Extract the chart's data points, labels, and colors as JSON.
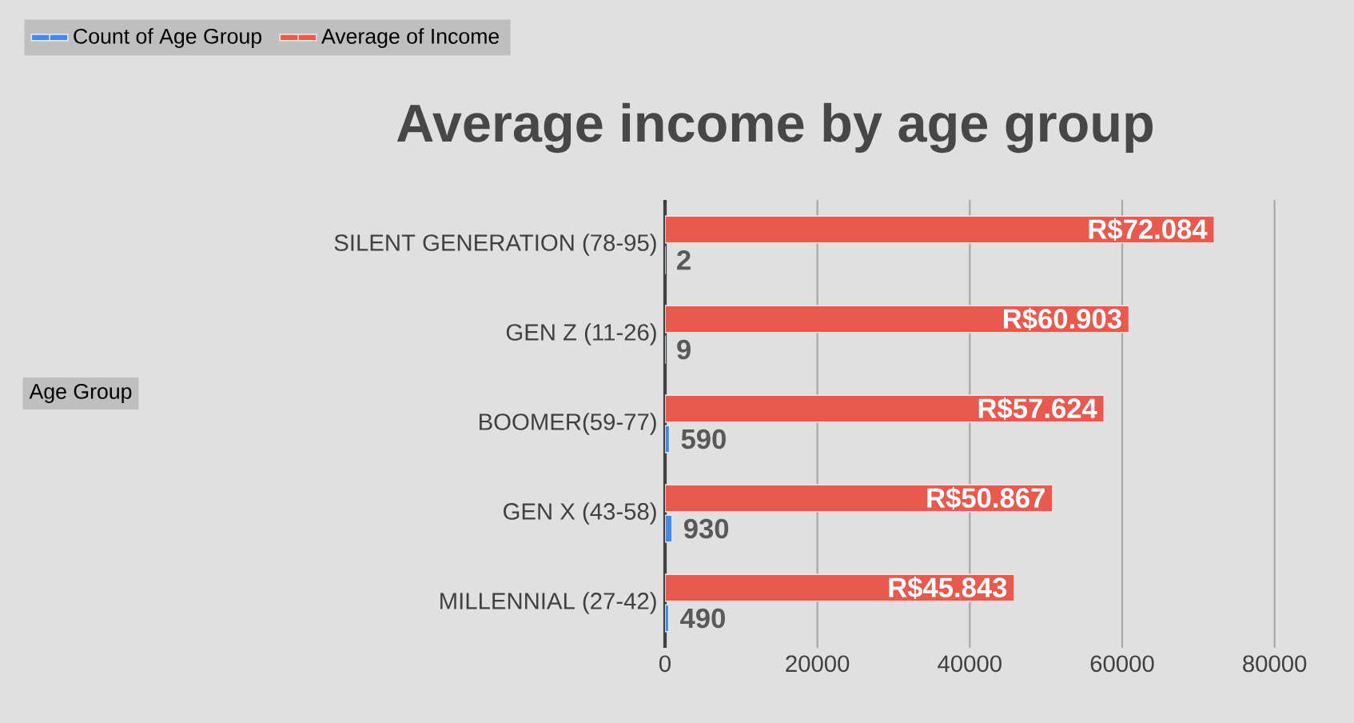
{
  "chart_data": {
    "type": "bar",
    "orientation": "horizontal",
    "title": "Average income by age group",
    "annotations": [
      "Age Group"
    ],
    "categories": [
      "SILENT GENERATION (78-95)",
      "GEN Z (11-26)",
      "BOOMER(59-77)",
      "GEN X (43-58)",
      "MILLENNIAL (27-42)"
    ],
    "series": [
      {
        "name": "Count of Age Group",
        "color": "#4a86e8",
        "values": [
          2,
          9,
          590,
          930,
          490
        ],
        "value_labels": [
          "2",
          "9",
          "590",
          "930",
          "490"
        ]
      },
      {
        "name": "Average of Income",
        "color": "#e8594f",
        "values": [
          72084,
          60903,
          57624,
          50867,
          45843
        ],
        "value_labels": [
          "R$72.084",
          "R$60.903",
          "R$57.624",
          "R$50.867",
          "R$45.843"
        ]
      }
    ],
    "xlim": [
      0,
      90000
    ],
    "xticks": [
      0,
      20000,
      40000,
      60000,
      80000
    ],
    "grid": "x",
    "legend": "top left"
  }
}
